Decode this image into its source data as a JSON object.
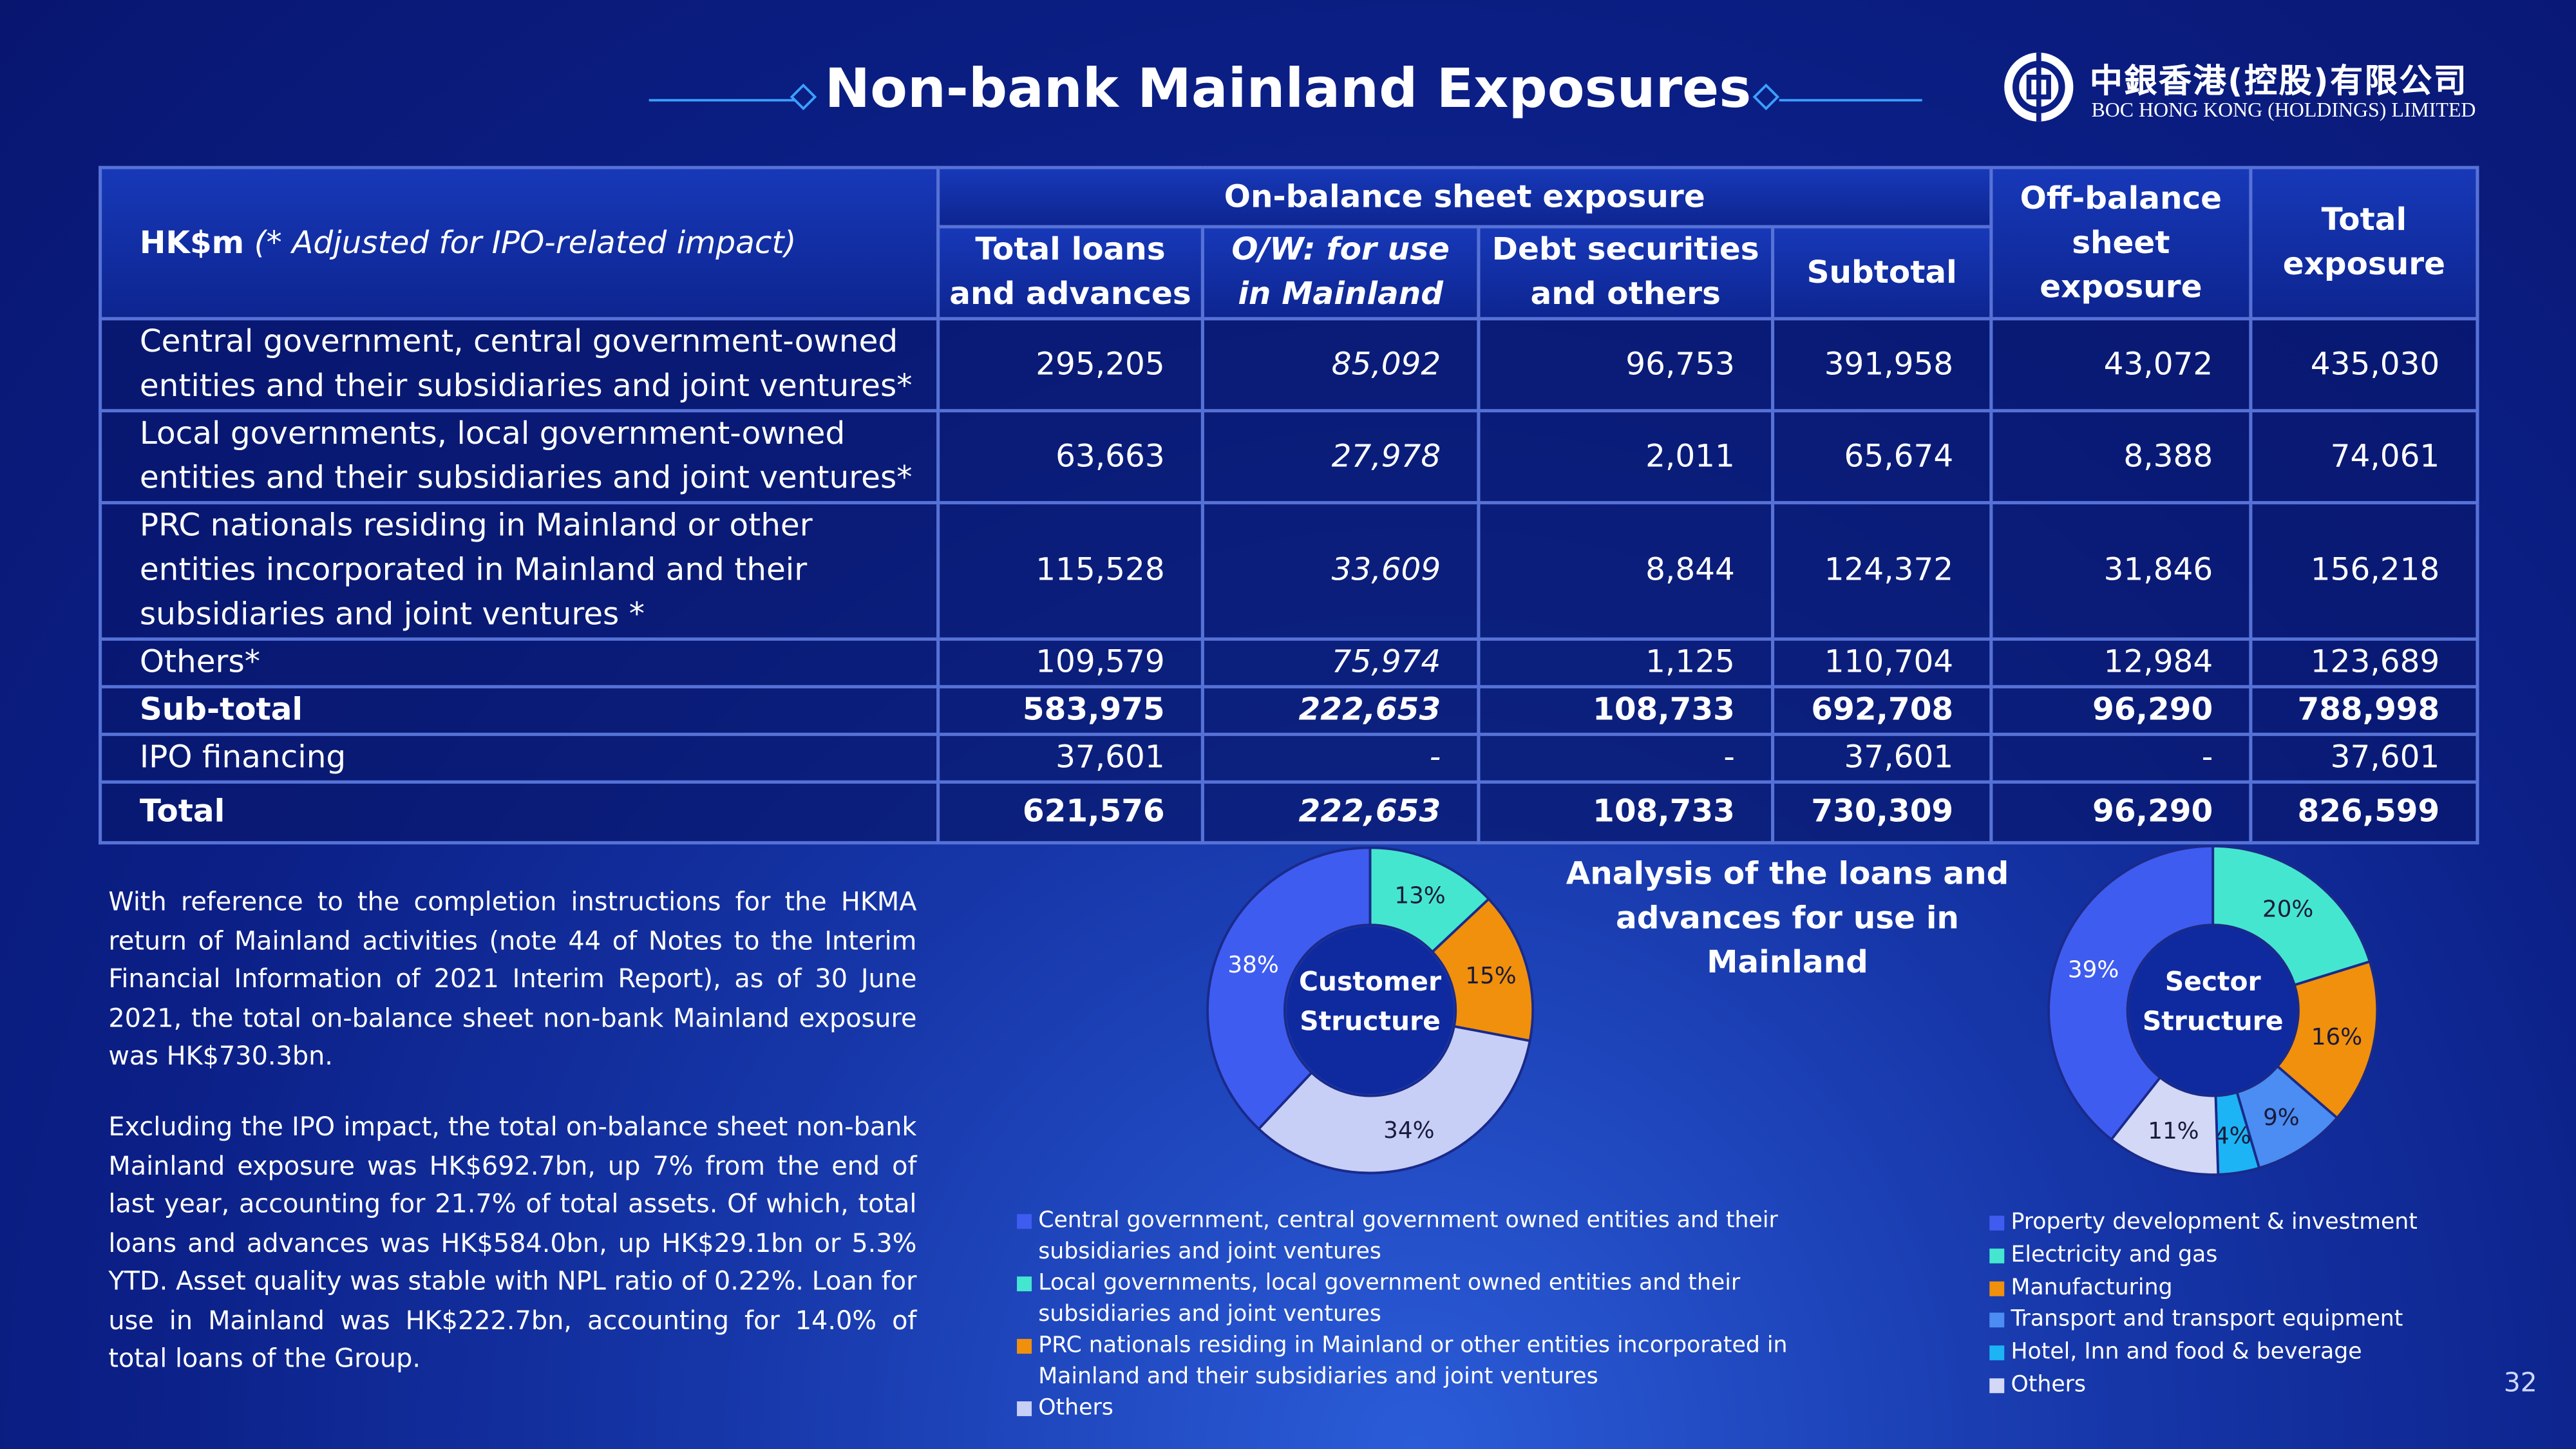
{
  "title": "Non-bank Mainland Exposures",
  "logo": {
    "chinese": "中銀香港(控股)有限公司",
    "english": "BOC HONG KONG (HOLDINGS) LIMITED"
  },
  "table": {
    "unit": "HK$m",
    "note": "(* Adjusted for IPO-related impact)",
    "group_header": "On-balance sheet exposure",
    "columns": [
      "Total loans and advances",
      "O/W: for use in Mainland",
      "Debt securities and others",
      "Subtotal",
      "Off-balance sheet exposure",
      "Total exposure"
    ],
    "rows": [
      [
        "Central government, central government-owned entities and their subsidiaries and joint ventures*",
        "295,205",
        "85,092",
        "96,753",
        "391,958",
        "43,072",
        "435,030"
      ],
      [
        "Local governments, local government-owned entities and their subsidiaries and joint ventures*",
        "63,663",
        "27,978",
        "2,011",
        "65,674",
        "8,388",
        "74,061"
      ],
      [
        "PRC nationals residing in Mainland or other entities incorporated in Mainland and their subsidiaries and joint ventures *",
        "115,528",
        "33,609",
        "8,844",
        "124,372",
        "31,846",
        "156,218"
      ],
      [
        "Others*",
        "109,579",
        "75,974",
        "1,125",
        "110,704",
        "12,984",
        "123,689"
      ],
      [
        "Sub-total",
        "583,975",
        "222,653",
        "108,733",
        "692,708",
        "96,290",
        "788,998"
      ],
      [
        "IPO financing",
        "37,601",
        "-",
        "-",
        "37,601",
        "-",
        "37,601"
      ],
      [
        "Total",
        "621,576",
        "222,653",
        "108,733",
        "730,309",
        "96,290",
        "826,599"
      ]
    ]
  },
  "paragraphs": [
    "With reference to the completion instructions for the HKMA return of Mainland activities (note 44 of Notes to the Interim Financial Information of 2021 Interim Report), as of 30 June 2021, the total on-balance sheet non-bank Mainland exposure was HK$730.3bn.",
    "Excluding the IPO impact, the total on-balance sheet non-bank Mainland exposure was HK$692.7bn, up 7% from the end of last year, accounting for 21.7% of total assets. Of which, total loans and advances was HK$584.0bn, up HK$29.1bn or 5.3% YTD. Asset quality was stable with NPL ratio of 0.22%. Loan for use in Mainland was HK$222.7bn, accounting for 14.0% of total loans of the Group."
  ],
  "chart_heading": "Analysis of  the loans and advances for use in Mainland",
  "chart_data": [
    {
      "type": "pie",
      "title": "Customer Structure",
      "categories": [
        "Central government, central government owned entities and their subsidiaries and joint ventures",
        "Local governments, local government owned entities and their subsidiaries and joint ventures",
        "PRC nationals residing in Mainland or other entities incorporated in Mainland and their subsidiaries and joint ventures",
        "Others"
      ],
      "values": [
        38,
        13,
        15,
        34
      ],
      "value_labels": [
        "38%",
        "13%",
        "15%",
        "34%"
      ],
      "colors": [
        "#3f5cf0",
        "#45e6cf",
        "#f0900c",
        "#c7cff7"
      ]
    },
    {
      "type": "pie",
      "title": "Sector Structure",
      "categories": [
        "Property development & investment",
        "Electricity and gas",
        "Manufacturing",
        "Transport and transport equipment",
        "Hotel, Inn and food & beverage",
        "Others"
      ],
      "values": [
        39,
        20,
        16,
        9,
        4,
        11
      ],
      "value_labels": [
        "39%",
        "20%",
        "16%",
        "9%",
        "4%",
        "11%"
      ],
      "colors": [
        "#3f5cf0",
        "#45e6cf",
        "#f0900c",
        "#4b8df2",
        "#1cb4f4",
        "#d3d8f7"
      ]
    }
  ],
  "page_number": "32"
}
